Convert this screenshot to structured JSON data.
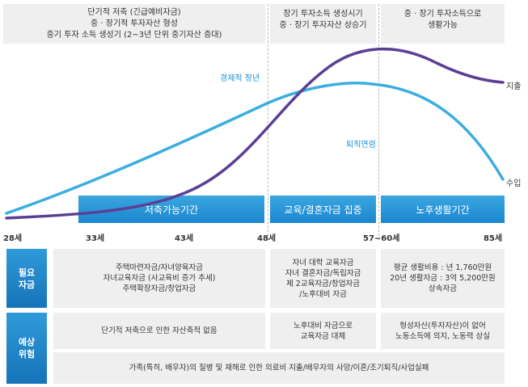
{
  "top_boxes": [
    {
      "lines": [
        "단기적 저축 (긴급예비자금)",
        "중 · 장기적 투자자산 형성",
        "중기 투자 소득 생성기 (2~3년 단위 중기자산 증대)"
      ]
    },
    {
      "lines": [
        "장기 투자소득 생성시기",
        "중 · 장기 투자자산 상승기"
      ]
    },
    {
      "lines": [
        "중 · 장기 투자소득으로",
        "생활가능"
      ]
    }
  ],
  "curve_labels": {
    "economic_retirement": "경제적 정년",
    "retirement_age": "퇴직연령",
    "expense": "지출",
    "income": "수입"
  },
  "curve_colors": {
    "income": "#3aaee0",
    "expense": "#5b3f95"
  },
  "periods": [
    "저축가능기간",
    "교육/결혼자금 집중",
    "노후생활기간"
  ],
  "ages": [
    "28세",
    "33세",
    "43세",
    "48세",
    "57~60세",
    "85세"
  ],
  "rows": {
    "needed_funds": {
      "label_lines": [
        "필요",
        "자금"
      ],
      "cells": [
        [
          "주택마련자금/자녀양육자금",
          "자녀교육자금 (사교육비 증가 추세)",
          "주택확장자금/창업자금"
        ],
        [
          "자녀 대학 교육자금",
          "자녀 결혼자금/독립자금",
          "제 2교육자금/창업자금",
          "/노후대비 자금"
        ],
        [
          "평균 생활비용 : 년 1,760만원",
          "20년 생활자금 : 3억 5,200만원",
          "상속자금"
        ]
      ]
    },
    "expected_risks": {
      "label_lines": [
        "예상",
        "위험"
      ],
      "cells": [
        [
          "단기적 저축으로 인한 자산축적 없음"
        ],
        [
          "노후대비 자금으로",
          "교육자금 대체"
        ],
        [
          "형성자산(투자자산)이 없어",
          "노동소득에 의지, 노동력 상실"
        ]
      ],
      "common": "가족(특히, 배우자)의 질병 및 재해로 인한 의료비 지출/배우자의 사망/이혼/조기퇴직/사업실패"
    }
  },
  "colors": {
    "accent": "#1e8fd5",
    "panel": "#efefef"
  }
}
